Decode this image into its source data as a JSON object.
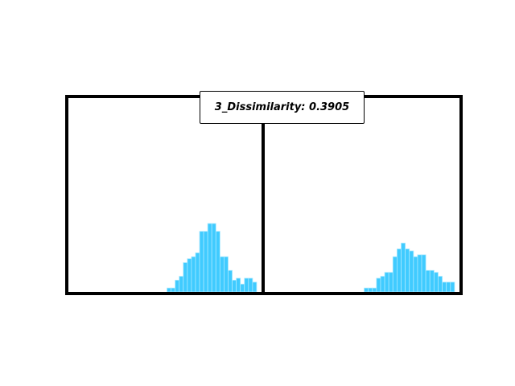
{
  "chart_data": {
    "type": "bar",
    "title": "3_Dissimilarity: 0.3905",
    "xlabel": "",
    "ylabel": "",
    "grid": false,
    "legend": "none",
    "bar_color": "#40cbff",
    "edge_color": "#a8e8ff",
    "frame_color": "#000000",
    "ylim": [
      0,
      1
    ],
    "panels": [
      {
        "name": "",
        "values": [
          0,
          0,
          0,
          0,
          0,
          0,
          0,
          0,
          0,
          0,
          0,
          0,
          0,
          0,
          0,
          0,
          0,
          0,
          0,
          0,
          0,
          0,
          0,
          0,
          0.02,
          0.02,
          0.06,
          0.08,
          0.15,
          0.17,
          0.18,
          0.2,
          0.31,
          0.31,
          0.35,
          0.35,
          0.31,
          0.18,
          0.18,
          0.11,
          0.06,
          0.07,
          0.04,
          0.07,
          0.07,
          0.05,
          0
        ]
      },
      {
        "name": "",
        "values": [
          0,
          0,
          0,
          0,
          0,
          0,
          0,
          0,
          0,
          0,
          0,
          0,
          0,
          0,
          0,
          0,
          0,
          0,
          0,
          0,
          0,
          0,
          0,
          0,
          0.02,
          0.02,
          0.02,
          0.07,
          0.08,
          0.1,
          0.1,
          0.18,
          0.22,
          0.25,
          0.22,
          0.21,
          0.18,
          0.19,
          0.19,
          0.11,
          0.11,
          0.1,
          0.08,
          0.05,
          0.05,
          0.05,
          0
        ]
      }
    ]
  }
}
